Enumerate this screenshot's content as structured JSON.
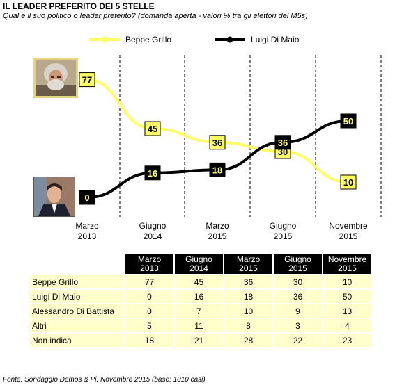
{
  "title": "IL LEADER PREFERITO DEI 5 STELLE",
  "subtitle": "Qual è il suo politico o leader preferito? (domanda aperta - valori % tra gli elettori del M5s)",
  "source": "Fonte: Sondaggio Demos & Pi, Novembre 2015 (base: 1010 casi)",
  "chart_data": {
    "type": "line",
    "categories": [
      {
        "month": "Marzo",
        "year": "2013"
      },
      {
        "month": "Giugno",
        "year": "2014"
      },
      {
        "month": "Marzo",
        "year": "2015"
      },
      {
        "month": "Giugno",
        "year": "2015"
      },
      {
        "month": "Novembre",
        "year": "2015"
      }
    ],
    "series": [
      {
        "name": "Beppe Grillo",
        "values": [
          77,
          45,
          36,
          30,
          10
        ],
        "color": "#ffff66",
        "label_bg": "#ffff66",
        "label_color": "#000000"
      },
      {
        "name": "Luigi Di Maio",
        "values": [
          0,
          16,
          18,
          36,
          50
        ],
        "color": "#000000",
        "label_bg": "#000000",
        "label_color": "#ffff66"
      }
    ],
    "ylim": [
      0,
      80
    ],
    "legend_position": "top",
    "grid": "vertical dashed separators"
  },
  "table": {
    "columns": [
      {
        "month": "Marzo",
        "year": "2013"
      },
      {
        "month": "Giugno",
        "year": "2014"
      },
      {
        "month": "Marzo",
        "year": "2015"
      },
      {
        "month": "Giugno",
        "year": "2015"
      },
      {
        "month": "Novembre",
        "year": "2015"
      }
    ],
    "rows": [
      {
        "label": "Beppe Grillo",
        "values": [
          "77",
          "45",
          "36",
          "30",
          "10"
        ]
      },
      {
        "label": "Luigi Di Maio",
        "values": [
          "0",
          "16",
          "18",
          "36",
          "50"
        ]
      },
      {
        "label": "Alessandro Di Battista",
        "values": [
          "0",
          "7",
          "10",
          "9",
          "13"
        ]
      },
      {
        "label": "Altri",
        "values": [
          "5",
          "11",
          "8",
          "3",
          "4"
        ]
      },
      {
        "label": "Non indica",
        "values": [
          "18",
          "21",
          "28",
          "22",
          "23"
        ]
      }
    ]
  }
}
